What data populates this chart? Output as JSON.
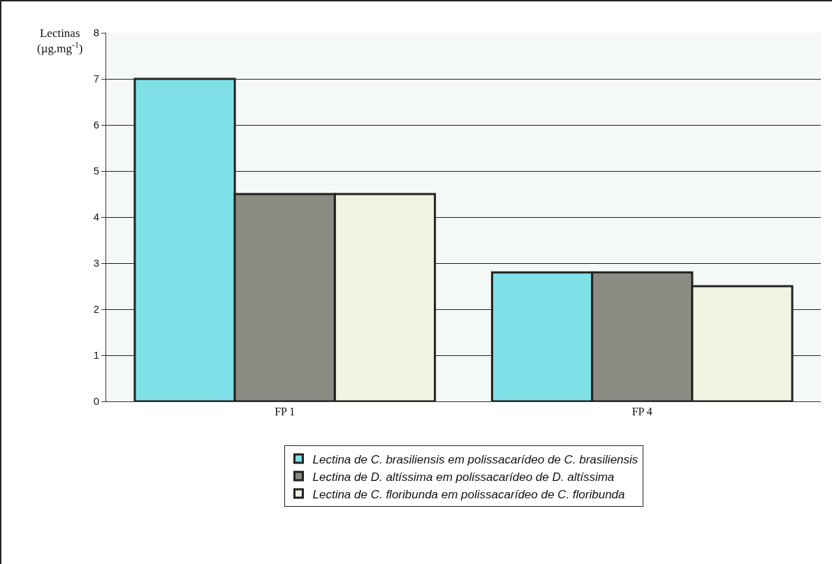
{
  "chart_data": {
    "type": "bar",
    "ylabel": "Lectinas (µg.mg$^{-1}$)",
    "categories": [
      "FP 1",
      "FP 4"
    ],
    "series": [
      {
        "name": "Lectina de C. brasiliensis em polissacarídeo de C. brasiliensis",
        "color": "#80e0e8",
        "values": [
          7.0,
          2.8
        ]
      },
      {
        "name": "Lectina de D. altíssima em polissacarídeo de D. altíssima",
        "color": "#8c8c84",
        "values": [
          4.5,
          2.8
        ]
      },
      {
        "name": "Lectina de C. floribunda em polissacarídeo de C. floribunda",
        "color": "#eef4e0",
        "values": [
          4.5,
          2.5
        ]
      }
    ],
    "ylim": [
      0,
      8
    ],
    "yticks": [
      0,
      1,
      2,
      3,
      4,
      5,
      6,
      7,
      8
    ],
    "grid": "y",
    "legend": "bottom"
  }
}
